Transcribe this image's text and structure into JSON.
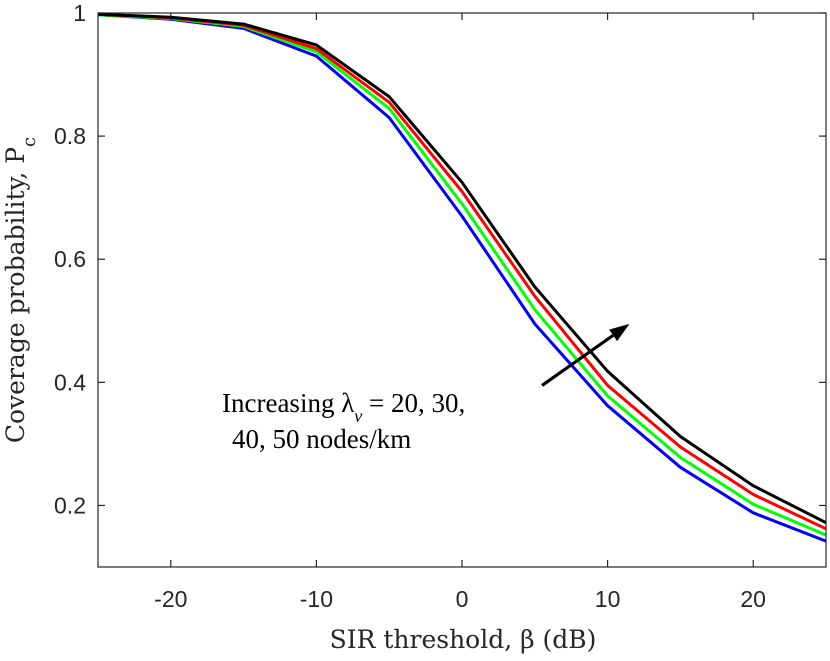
{
  "chart_data": {
    "type": "line",
    "xlabel": "SIR threshold, β (dB)",
    "ylabel": "Coverage probability, P_c",
    "xlim": [
      -25,
      25
    ],
    "ylim": [
      0.1,
      1.0
    ],
    "xticks": [
      -20,
      -10,
      0,
      10,
      20
    ],
    "yticks": [
      0.2,
      0.4,
      0.6,
      0.8,
      1
    ],
    "xtick_labels": [
      "-20",
      "-10",
      "0",
      "10",
      "20"
    ],
    "ytick_labels": [
      "0.2",
      "0.4",
      "0.6",
      "0.8",
      "1"
    ],
    "grid": false,
    "x": [
      -25,
      -20,
      -15,
      -10,
      -5,
      0,
      5,
      10,
      15,
      20,
      25
    ],
    "series": [
      {
        "color": "#0000ff",
        "values": [
          0.997,
          0.99,
          0.975,
          0.93,
          0.83,
          0.67,
          0.495,
          0.362,
          0.262,
          0.188,
          0.142
        ]
      },
      {
        "color": "#00ff00",
        "values": [
          0.997,
          0.991,
          0.978,
          0.937,
          0.845,
          0.69,
          0.518,
          0.378,
          0.278,
          0.202,
          0.152
        ]
      },
      {
        "color": "#ff0000",
        "values": [
          0.998,
          0.992,
          0.98,
          0.942,
          0.855,
          0.71,
          0.54,
          0.395,
          0.295,
          0.218,
          0.162
        ]
      },
      {
        "color": "#000000",
        "values": [
          0.998,
          0.993,
          0.982,
          0.948,
          0.864,
          0.725,
          0.555,
          0.418,
          0.312,
          0.232,
          0.172
        ]
      }
    ],
    "annotation": {
      "line1": "Increasing λv = 20, 30,",
      "line2": "40, 50 nodes/km",
      "arrow_from": [
        5.5,
        0.395
      ],
      "arrow_to": [
        11.5,
        0.495
      ]
    }
  }
}
